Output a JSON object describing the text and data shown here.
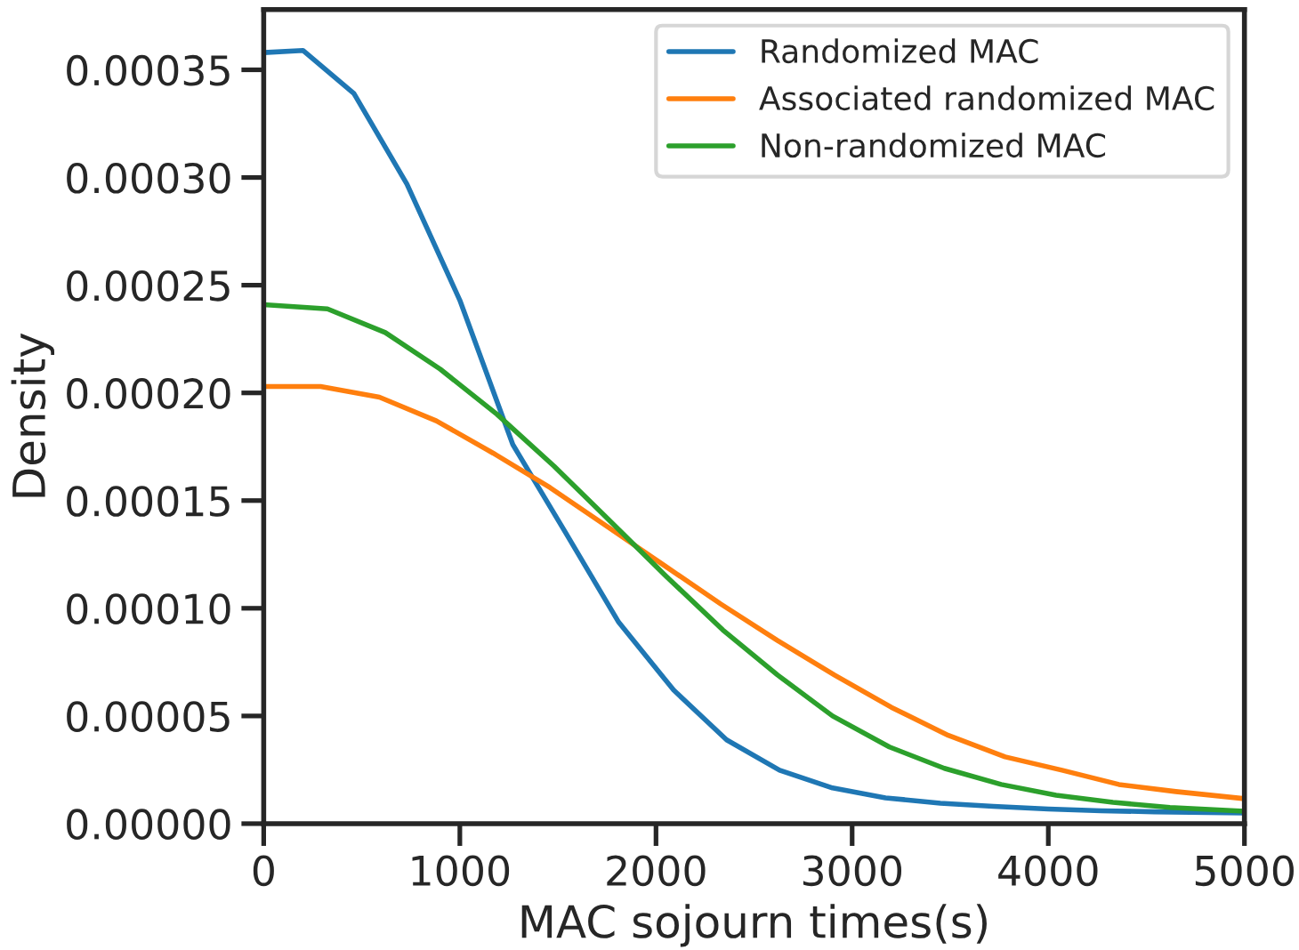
{
  "chart_data": {
    "type": "line",
    "xlabel": "MAC sojourn times(s)",
    "ylabel": "Density",
    "xlim": [
      0,
      5000
    ],
    "ylim": [
      0,
      0.000378
    ],
    "xticks": [
      0,
      1000,
      2000,
      3000,
      4000,
      5000
    ],
    "yticks": [
      {
        "value": 0,
        "label": "0.00000"
      },
      {
        "value": 5e-05,
        "label": "0.00005"
      },
      {
        "value": 0.0001,
        "label": "0.00010"
      },
      {
        "value": 0.00015,
        "label": "0.00015"
      },
      {
        "value": 0.0002,
        "label": "0.00020"
      },
      {
        "value": 0.00025,
        "label": "0.00025"
      },
      {
        "value": 0.0003,
        "label": "0.00030"
      },
      {
        "value": 0.00035,
        "label": "0.00035"
      }
    ],
    "grid": false,
    "legend": "top right",
    "marker": "none",
    "line_style": "solid",
    "series": [
      {
        "name": "Randomized MAC",
        "color": "#1f77b4",
        "x": [
          0,
          200,
          460,
          730,
          1000,
          1270,
          1540,
          1810,
          2090,
          2360,
          2630,
          2900,
          3170,
          3450,
          3720,
          4000,
          4270,
          4540,
          5000
        ],
        "values": [
          0.000358,
          0.000359,
          0.000339,
          0.000297,
          0.000243,
          0.000176,
          0.000135,
          9.35e-05,
          6.2e-05,
          3.89e-05,
          2.48e-05,
          1.66e-05,
          1.2e-05,
          9.5e-06,
          8e-06,
          6.8e-06,
          6e-06,
          5.5e-06,
          5e-06
        ]
      },
      {
        "name": "Associated randomized MAC",
        "color": "#ff7f0e",
        "x": [
          0,
          290,
          590,
          880,
          1170,
          1460,
          1750,
          2040,
          2330,
          2620,
          2910,
          3200,
          3490,
          3780,
          4070,
          4360,
          4650,
          5000
        ],
        "values": [
          0.000203,
          0.000203,
          0.000198,
          0.000187,
          0.000172,
          0.000156,
          0.000138,
          0.00012,
          0.000102,
          8.5e-05,
          6.9e-05,
          5.4e-05,
          4.1e-05,
          3.1e-05,
          2.48e-05,
          1.82e-05,
          1.49e-05,
          1.16e-05
        ]
      },
      {
        "name": "Non-randomized MAC",
        "color": "#2ca02c",
        "x": [
          0,
          325,
          620,
          900,
          1190,
          1480,
          1760,
          2050,
          2340,
          2620,
          2900,
          3190,
          3470,
          3760,
          4040,
          4330,
          4620,
          5000
        ],
        "values": [
          0.000241,
          0.000239,
          0.000228,
          0.000211,
          0.00019,
          0.000166,
          0.000141,
          0.000115,
          9e-05,
          6.9e-05,
          5e-05,
          3.56e-05,
          2.57e-05,
          1.82e-05,
          1.32e-05,
          9.9e-06,
          7.5e-06,
          5.8e-06
        ]
      }
    ]
  }
}
